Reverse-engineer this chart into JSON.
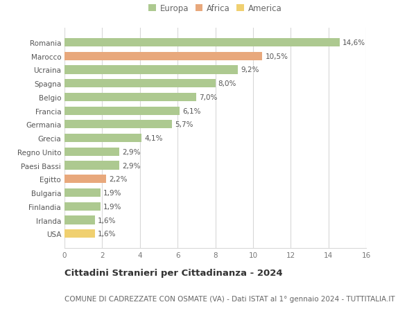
{
  "countries": [
    "Romania",
    "Marocco",
    "Ucraina",
    "Spagna",
    "Belgio",
    "Francia",
    "Germania",
    "Grecia",
    "Regno Unito",
    "Paesi Bassi",
    "Egitto",
    "Bulgaria",
    "Finlandia",
    "Irlanda",
    "USA"
  ],
  "values": [
    14.6,
    10.5,
    9.2,
    8.0,
    7.0,
    6.1,
    5.7,
    4.1,
    2.9,
    2.9,
    2.2,
    1.9,
    1.9,
    1.6,
    1.6
  ],
  "labels": [
    "14,6%",
    "10,5%",
    "9,2%",
    "8,0%",
    "7,0%",
    "6,1%",
    "5,7%",
    "4,1%",
    "2,9%",
    "2,9%",
    "2,2%",
    "1,9%",
    "1,9%",
    "1,6%",
    "1,6%"
  ],
  "continent": [
    "Europa",
    "Africa",
    "Europa",
    "Europa",
    "Europa",
    "Europa",
    "Europa",
    "Europa",
    "Europa",
    "Europa",
    "Africa",
    "Europa",
    "Europa",
    "Europa",
    "America"
  ],
  "colors": {
    "Europa": "#adc990",
    "Africa": "#e8a87c",
    "America": "#f0d070"
  },
  "xlim": [
    0,
    16
  ],
  "xticks": [
    0,
    2,
    4,
    6,
    8,
    10,
    12,
    14,
    16
  ],
  "title": "Cittadini Stranieri per Cittadinanza - 2024",
  "subtitle": "COMUNE DI CADREZZATE CON OSMATE (VA) - Dati ISTAT al 1° gennaio 2024 - TUTTITALIA.IT",
  "bg_color": "#ffffff",
  "grid_color": "#d8d8d8",
  "bar_height": 0.62,
  "title_fontsize": 9.5,
  "subtitle_fontsize": 7.5,
  "label_fontsize": 7.5,
  "tick_fontsize": 7.5,
  "legend_fontsize": 8.5
}
